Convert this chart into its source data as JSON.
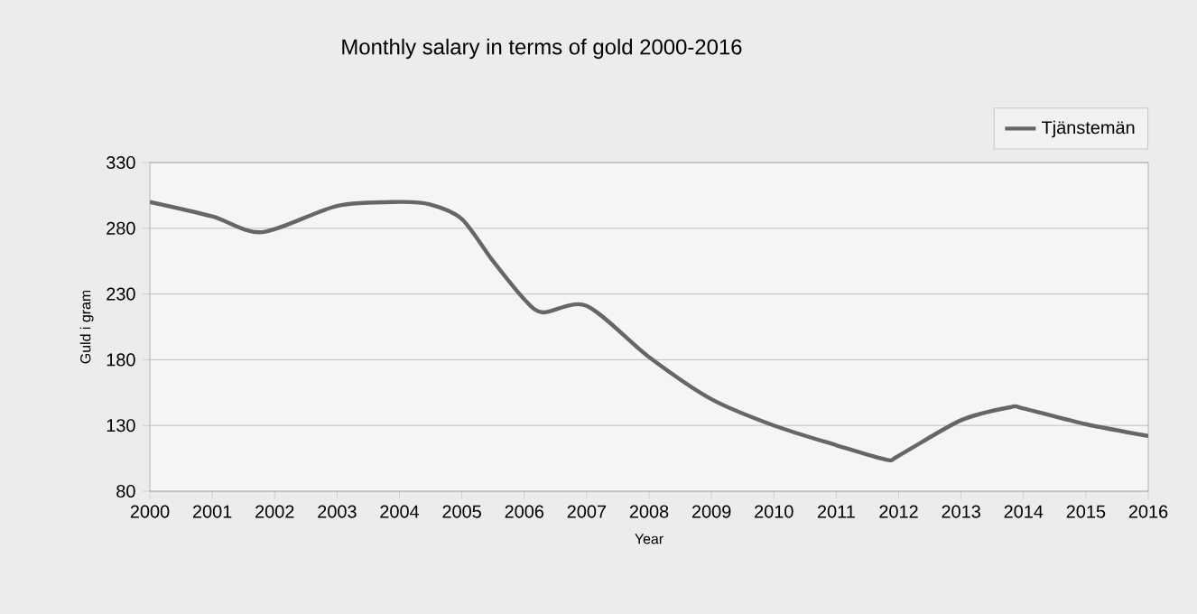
{
  "chart_data": {
    "type": "line",
    "title": "Monthly salary in terms of gold  2000-2016",
    "xlabel": "Year",
    "ylabel": "Guld i gram",
    "x": [
      2000,
      2001,
      2001.8,
      2003,
      2004,
      2004.5,
      2005,
      2005.5,
      2006,
      2006.3,
      2007,
      2008,
      2009,
      2010,
      2011,
      2011.8,
      2012,
      2013,
      2013.8,
      2014,
      2015,
      2016
    ],
    "series": [
      {
        "name": "Tjänstemän",
        "color": "#666666",
        "values": [
          300,
          289,
          277,
          297,
          300,
          298,
          287,
          255,
          226,
          216,
          221,
          182,
          150,
          130,
          115,
          104,
          107,
          134,
          144,
          143,
          131,
          122
        ]
      }
    ],
    "xlim": [
      2000,
      2016
    ],
    "xticks": [
      2000,
      2001,
      2002,
      2003,
      2004,
      2005,
      2006,
      2007,
      2008,
      2009,
      2010,
      2011,
      2012,
      2013,
      2014,
      2015,
      2016
    ],
    "ylim": [
      80,
      330
    ],
    "yticks": [
      80,
      130,
      180,
      230,
      280,
      330
    ],
    "grid": "y",
    "legend": "top right"
  }
}
